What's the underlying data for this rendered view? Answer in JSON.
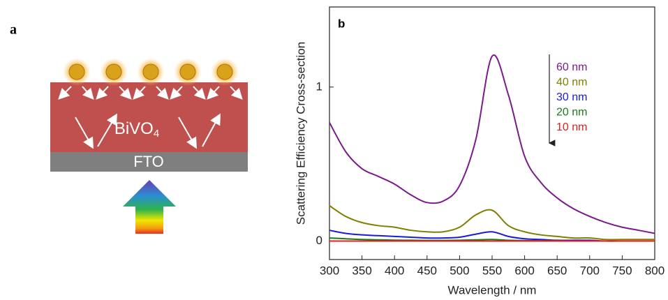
{
  "panel_a": {
    "label": "a",
    "layer_top": "BiVO",
    "layer_top_subscript": "4",
    "layer_bottom": "FTO"
  },
  "chart_data": {
    "type": "line",
    "panel_label": "b",
    "x_label": "Wavelength / nm",
    "y_label": "Scattering Efficiency Cross-section",
    "x": [
      300,
      325,
      350,
      375,
      400,
      425,
      450,
      475,
      500,
      525,
      550,
      575,
      600,
      625,
      650,
      675,
      700,
      725,
      750,
      775,
      800
    ],
    "series": [
      {
        "name": "60 nm",
        "color": "#7b1a8b",
        "values": [
          0.77,
          0.58,
          0.47,
          0.42,
          0.37,
          0.3,
          0.25,
          0.26,
          0.36,
          0.66,
          1.2,
          0.95,
          0.55,
          0.38,
          0.28,
          0.21,
          0.16,
          0.12,
          0.09,
          0.07,
          0.05
        ]
      },
      {
        "name": "40 nm",
        "color": "#7f7f00",
        "values": [
          0.23,
          0.16,
          0.12,
          0.1,
          0.09,
          0.07,
          0.06,
          0.06,
          0.09,
          0.17,
          0.2,
          0.1,
          0.06,
          0.04,
          0.03,
          0.02,
          0.02,
          0.01,
          0.01,
          0.01,
          0.01
        ]
      },
      {
        "name": "30 nm",
        "color": "#1a1adb",
        "values": [
          0.07,
          0.05,
          0.04,
          0.035,
          0.03,
          0.025,
          0.02,
          0.02,
          0.025,
          0.045,
          0.06,
          0.03,
          0.015,
          0.01,
          0.005,
          0.005,
          0.005,
          0,
          0,
          0,
          0
        ]
      },
      {
        "name": "20 nm",
        "color": "#1a7a1a",
        "values": [
          0.02,
          0.015,
          0.01,
          0.008,
          0.006,
          0.005,
          0.004,
          0.004,
          0.005,
          0.008,
          0.01,
          0.005,
          0.003,
          0.002,
          0.001,
          0,
          0,
          0,
          0,
          0,
          0
        ]
      },
      {
        "name": "10 nm",
        "color": "#e02020",
        "values": [
          0,
          0,
          0,
          0,
          0,
          0,
          0,
          0,
          0,
          0,
          0,
          0,
          0,
          0,
          0,
          0,
          0,
          0,
          0,
          0,
          0
        ]
      }
    ],
    "xlim": [
      300,
      800
    ],
    "xticks": [
      300,
      350,
      400,
      450,
      500,
      550,
      600,
      650,
      700,
      750,
      800
    ],
    "ylim": [
      -0.12,
      1.52
    ],
    "yticks": [
      0,
      1
    ]
  }
}
